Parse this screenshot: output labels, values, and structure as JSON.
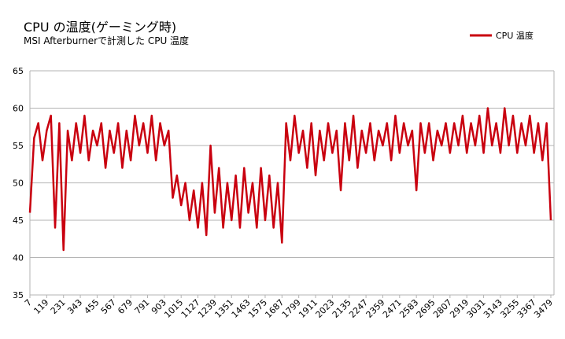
{
  "chart_data": {
    "type": "line",
    "title": "CPU の温度(ゲーミング時)",
    "subtitle": "MSI Afterburnerで計測した CPU 温度",
    "x": [
      7,
      35,
      63,
      91,
      119,
      147,
      175,
      203,
      231,
      259,
      287,
      315,
      343,
      371,
      399,
      427,
      455,
      483,
      511,
      539,
      567,
      595,
      623,
      651,
      679,
      707,
      735,
      763,
      791,
      819,
      847,
      875,
      903,
      931,
      959,
      987,
      1015,
      1043,
      1071,
      1099,
      1127,
      1155,
      1183,
      1211,
      1239,
      1267,
      1295,
      1323,
      1351,
      1379,
      1407,
      1435,
      1463,
      1491,
      1519,
      1547,
      1575,
      1603,
      1631,
      1659,
      1687,
      1715,
      1743,
      1771,
      1799,
      1827,
      1855,
      1883,
      1911,
      1939,
      1967,
      1995,
      2023,
      2051,
      2079,
      2107,
      2135,
      2163,
      2191,
      2219,
      2247,
      2275,
      2303,
      2331,
      2359,
      2387,
      2415,
      2443,
      2471,
      2499,
      2527,
      2555,
      2583,
      2611,
      2639,
      2667,
      2695,
      2723,
      2751,
      2779,
      2807,
      2835,
      2863,
      2891,
      2919,
      2947,
      2975,
      3003,
      3031,
      3059,
      3087,
      3115,
      3143,
      3171,
      3199,
      3227,
      3255,
      3283,
      3311,
      3339,
      3367,
      3395,
      3423,
      3451,
      3479
    ],
    "series": [
      {
        "name": "CPU 温度",
        "color": "#c9000f",
        "values": [
          46,
          56,
          58,
          53,
          57,
          59,
          44,
          58,
          41,
          57,
          53,
          58,
          54,
          59,
          53,
          57,
          55,
          58,
          52,
          57,
          54,
          58,
          52,
          57,
          53,
          59,
          55,
          58,
          54,
          59,
          53,
          58,
          55,
          57,
          48,
          51,
          47,
          50,
          45,
          49,
          44,
          50,
          43,
          55,
          46,
          52,
          44,
          50,
          45,
          51,
          44,
          52,
          46,
          50,
          44,
          52,
          45,
          51,
          44,
          50,
          42,
          58,
          53,
          59,
          54,
          57,
          52,
          58,
          51,
          57,
          53,
          58,
          54,
          57,
          49,
          58,
          53,
          59,
          52,
          57,
          54,
          58,
          53,
          57,
          55,
          58,
          53,
          59,
          54,
          58,
          55,
          57,
          49,
          58,
          54,
          58,
          53,
          57,
          55,
          58,
          54,
          58,
          55,
          59,
          54,
          58,
          55,
          59,
          54,
          60,
          55,
          58,
          54,
          60,
          55,
          59,
          54,
          58,
          55,
          59,
          54,
          58,
          53,
          58,
          45
        ]
      }
    ],
    "xlim": [
      7,
      3500
    ],
    "xticks": [
      7,
      119,
      231,
      343,
      455,
      567,
      679,
      791,
      903,
      1015,
      1127,
      1239,
      1351,
      1463,
      1575,
      1687,
      1799,
      1911,
      2023,
      2135,
      2247,
      2359,
      2471,
      2583,
      2695,
      2807,
      2919,
      3031,
      3143,
      3255,
      3367,
      3479
    ],
    "ylim": [
      35,
      65
    ],
    "yticks": [
      35,
      40,
      45,
      50,
      55,
      60,
      65
    ],
    "grid": true,
    "legend": "top-right"
  }
}
